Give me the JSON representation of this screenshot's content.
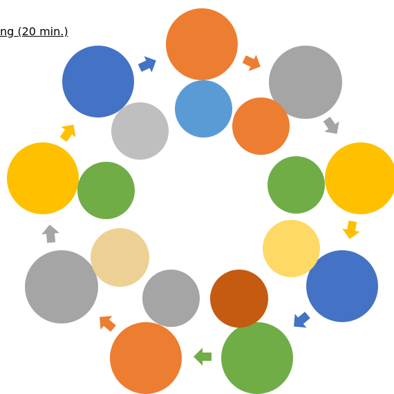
{
  "heading": {
    "text": "ng (20 min.)"
  },
  "colors": {
    "orange": "#ED7D31",
    "blue": "#4472C4",
    "light_blue": "#5B9BD5",
    "gray": "#A5A5A5",
    "light_gray": "#BFBFBF",
    "gold": "#FFC000",
    "light_gold": "#FFD966",
    "tan": "#EDD194",
    "green": "#70AD47",
    "dark_orange": "#C55A11"
  },
  "cycle": {
    "outer_circles": [
      "orange",
      "gray",
      "gold",
      "blue",
      "green",
      "orange",
      "gray",
      "gold",
      "blue"
    ],
    "inner_circles": [
      "light_blue",
      "orange",
      "green",
      "light_gold",
      "dark_orange",
      "gray",
      "tan",
      "green",
      "light_gray"
    ],
    "arrows": [
      "orange",
      "gray",
      "gold",
      "blue",
      "green",
      "orange",
      "gray",
      "gold",
      "blue"
    ]
  }
}
